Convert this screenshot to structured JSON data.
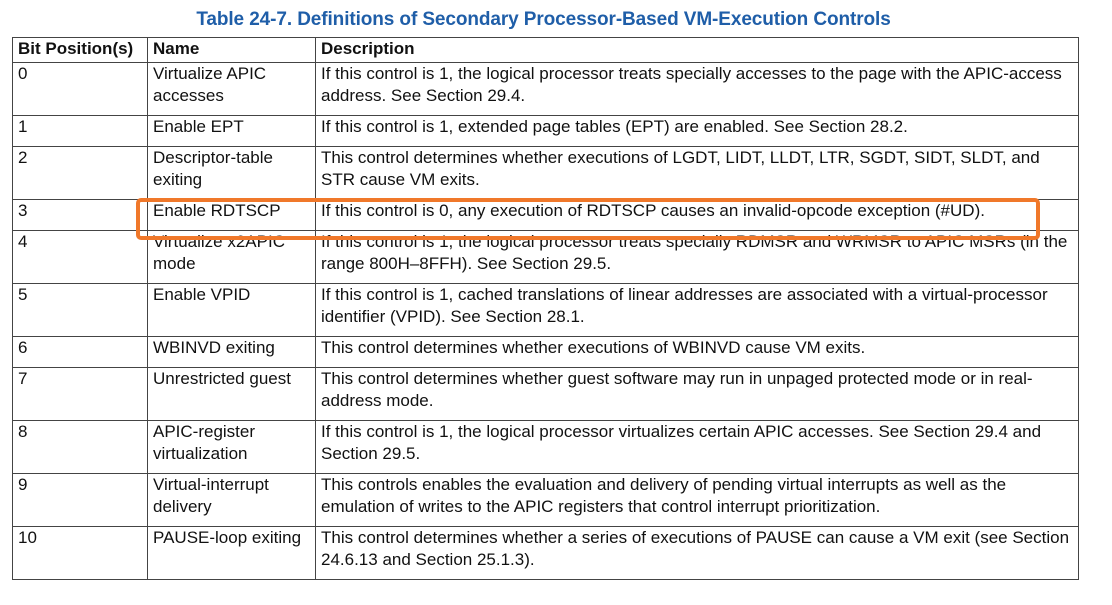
{
  "title": "Table 24-7.  Definitions of Secondary Processor-Based VM-Execution Controls",
  "columns": [
    "Bit Position(s)",
    "Name",
    "Description"
  ],
  "highlight_color": "#f0782a",
  "title_color": "#1f5ea8",
  "rows": [
    {
      "bit": "0",
      "name": "Virtualize APIC accesses",
      "desc": "If this control is 1, the logical processor treats specially accesses to the page with the APIC-access address. See Section 29.4."
    },
    {
      "bit": "1",
      "name": "Enable EPT",
      "desc": "If this control is 1, extended page tables (EPT) are enabled. See Section 28.2."
    },
    {
      "bit": "2",
      "name": "Descriptor-table exiting",
      "desc": "This control determines whether executions of LGDT, LIDT, LLDT, LTR, SGDT, SIDT, SLDT, and STR cause VM exits."
    },
    {
      "bit": "3",
      "name": "Enable RDTSCP",
      "desc": "If this control is 0, any execution of RDTSCP causes an invalid-opcode exception (#UD)."
    },
    {
      "bit": "4",
      "name": "Virtualize x2APIC mode",
      "desc": "If this control is 1, the logical processor treats specially RDMSR and WRMSR to APIC MSRs (in the range 800H–8FFH). See Section 29.5."
    },
    {
      "bit": "5",
      "name": "Enable VPID",
      "desc": "If this control is 1, cached translations of linear addresses are associated with a virtual-processor identifier (VPID). See Section 28.1."
    },
    {
      "bit": "6",
      "name": "WBINVD exiting",
      "desc": "This control determines whether executions of WBINVD cause VM exits."
    },
    {
      "bit": "7",
      "name": "Unrestricted guest",
      "desc": "This control determines whether guest software may run in unpaged protected mode or in real-address mode."
    },
    {
      "bit": "8",
      "name": "APIC-register virtualization",
      "desc": "If this control is 1, the logical processor virtualizes certain APIC accesses. See Section 29.4 and Section 29.5."
    },
    {
      "bit": "9",
      "name": "Virtual-interrupt delivery",
      "desc": "This controls enables the evaluation and delivery of pending virtual interrupts as well as the emulation of writes to the APIC registers that control interrupt prioritization."
    },
    {
      "bit": "10",
      "name": "PAUSE-loop exiting",
      "desc": "This control determines whether a series of executions of PAUSE can cause a VM exit (see Section 24.6.13 and Section 25.1.3)."
    }
  ]
}
